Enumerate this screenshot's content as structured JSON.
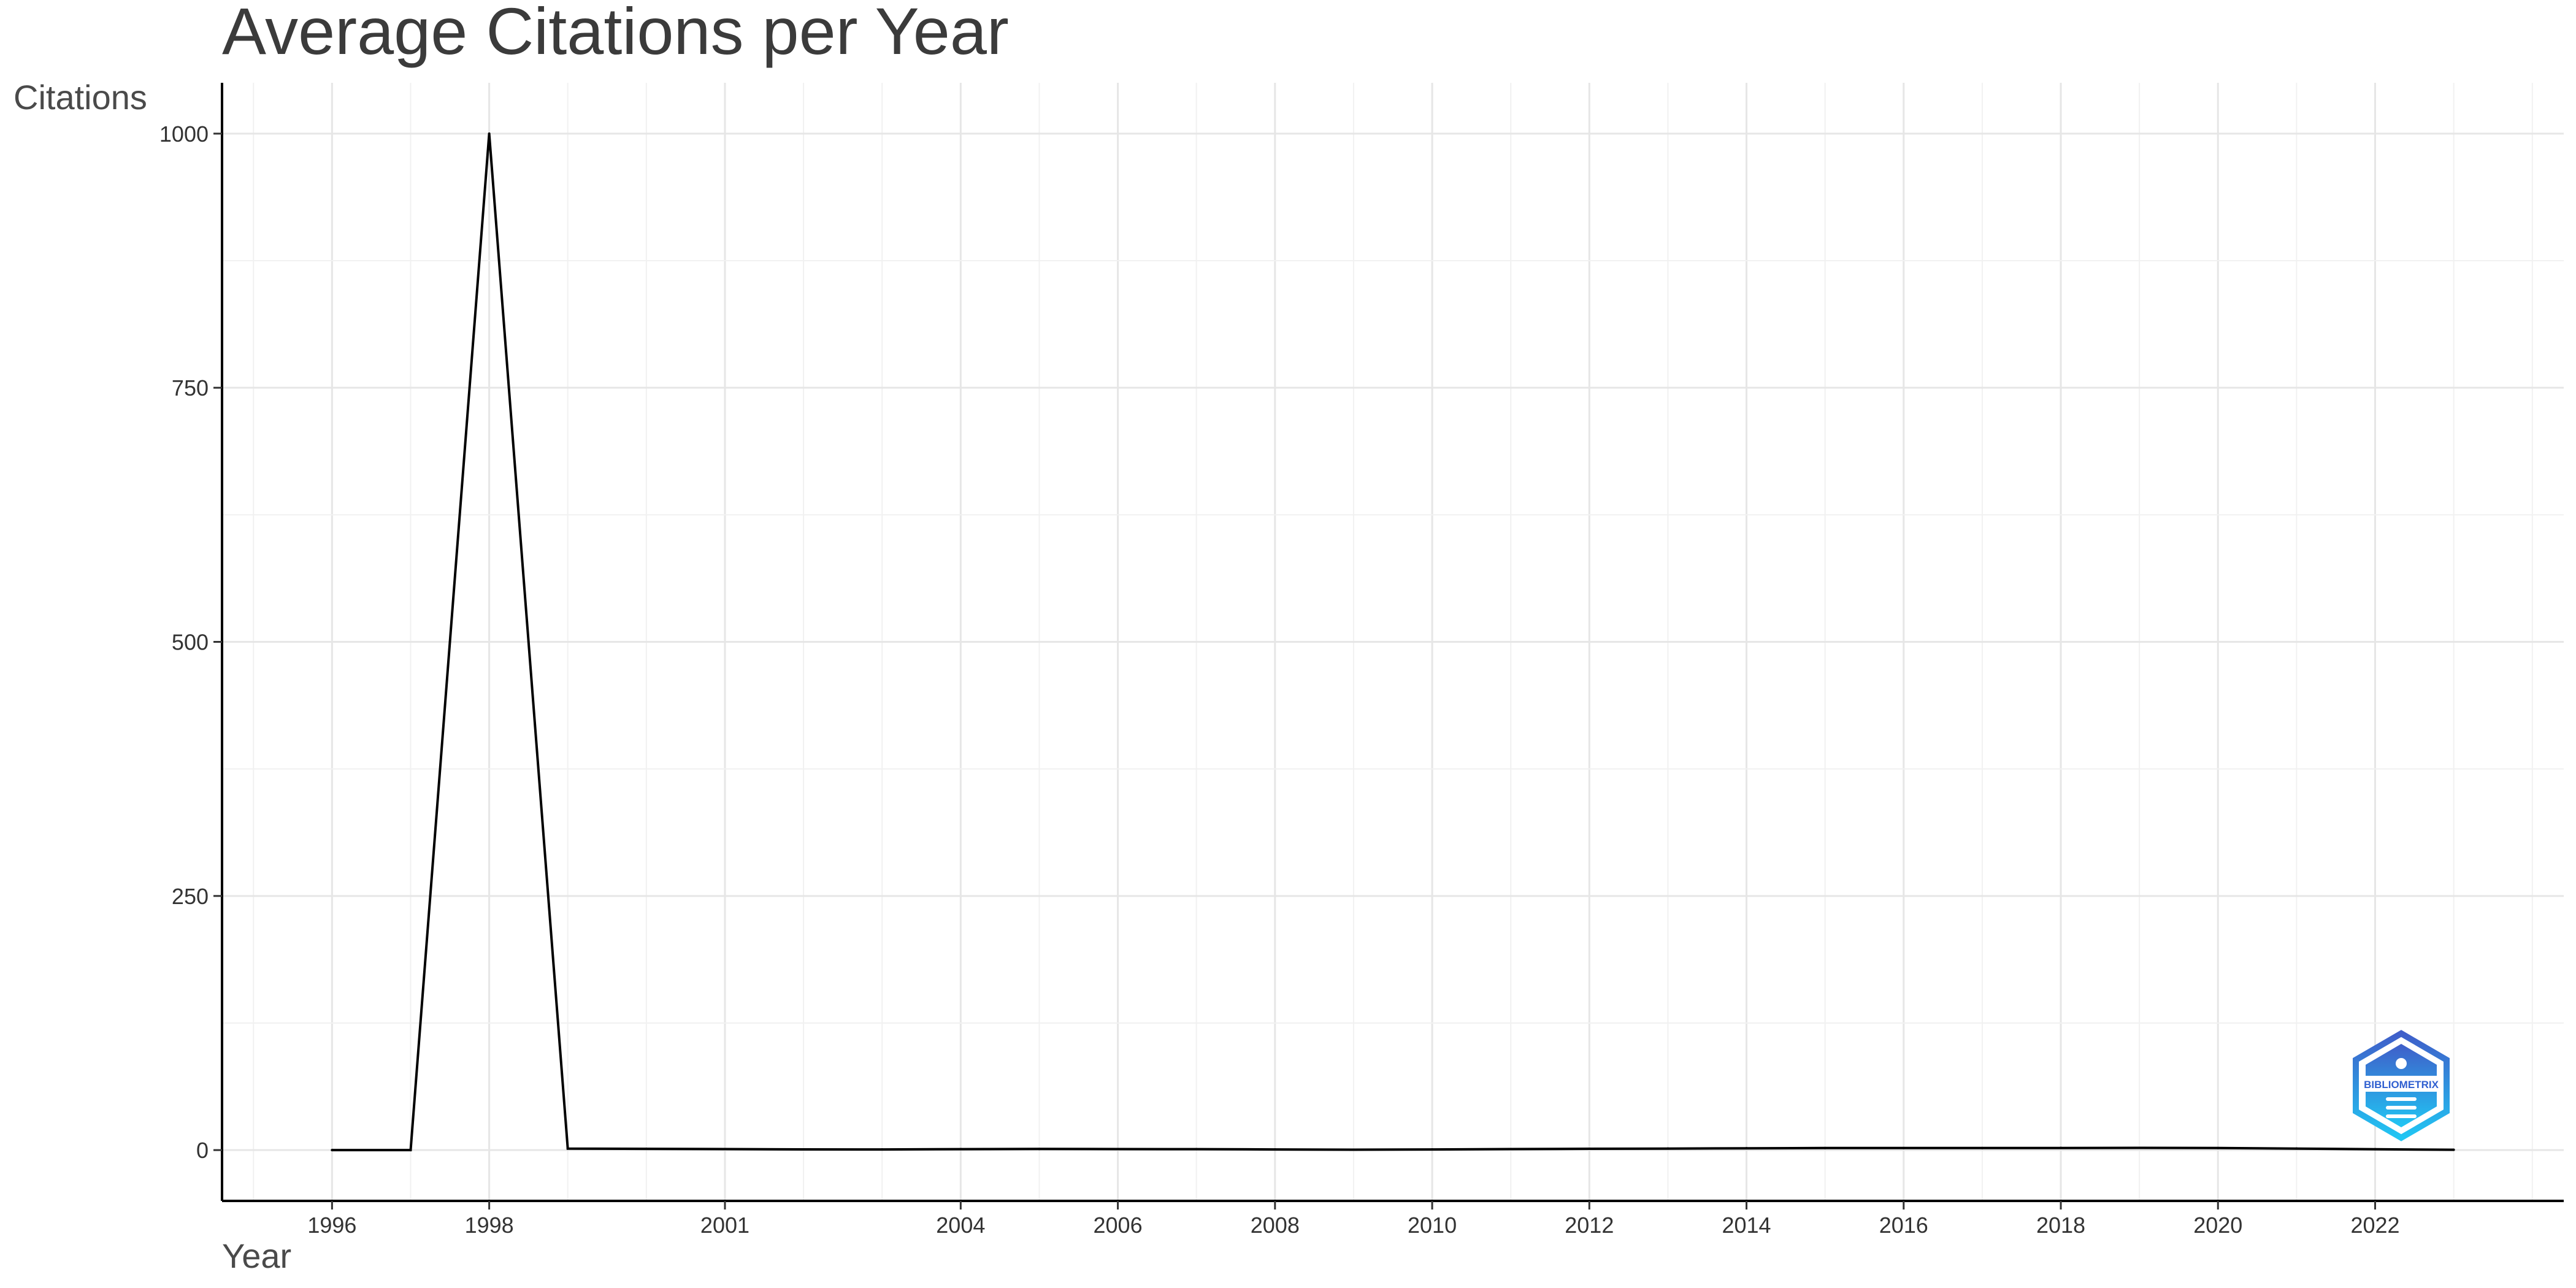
{
  "chart_data": {
    "type": "line",
    "title": "Average Citations per Year",
    "xlabel": "Year",
    "ylabel": "Citations",
    "x": [
      1996,
      1997,
      1998,
      1999,
      2000,
      2001,
      2002,
      2003,
      2004,
      2005,
      2006,
      2007,
      2008,
      2009,
      2010,
      2011,
      2012,
      2013,
      2014,
      2015,
      2016,
      2017,
      2018,
      2019,
      2020,
      2021,
      2022,
      2023
    ],
    "series": [
      {
        "values": [
          0,
          0,
          1000,
          1.5,
          1.2,
          1.0,
          0.7,
          0.6,
          0.9,
          1.1,
          1.0,
          0.9,
          0.6,
          0.4,
          0.6,
          1.0,
          1.3,
          1.5,
          1.8,
          2.0,
          2.0,
          2.0,
          2.1,
          2.2,
          2.0,
          1.5,
          0.8,
          0.3
        ],
        "color": "#000000"
      }
    ],
    "xlim": [
      1994.6,
      2024.4
    ],
    "ylim": [
      -50,
      1050
    ],
    "x_ticks": [
      1996,
      1998,
      2001,
      2004,
      2006,
      2008,
      2010,
      2012,
      2014,
      2016,
      2018,
      2020,
      2022
    ],
    "y_ticks": [
      0,
      250,
      500,
      750,
      1000
    ],
    "grid": true,
    "legend": "none"
  },
  "logo": {
    "icon": "bibliometrix-hexagon-logo",
    "text": "BIBLIOMETRIX"
  }
}
